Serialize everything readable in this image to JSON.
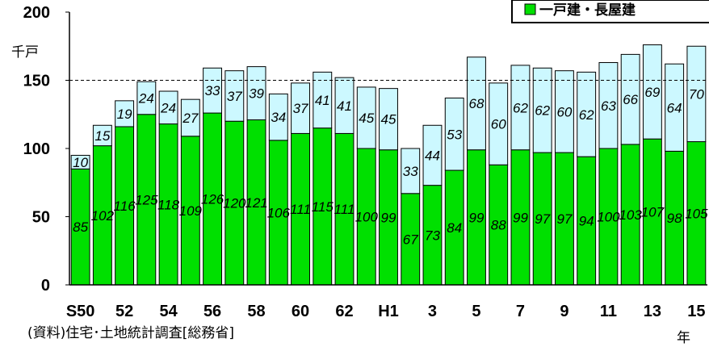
{
  "chart_data": {
    "type": "bar",
    "stacked": true,
    "categories": [
      "S50",
      "51",
      "52",
      "53",
      "54",
      "55",
      "56",
      "57",
      "58",
      "59",
      "60",
      "61",
      "62",
      "63",
      "H1",
      "2",
      "3",
      "4",
      "5",
      "6",
      "7",
      "8",
      "9",
      "10",
      "11",
      "12",
      "13",
      "14",
      "15"
    ],
    "x_tick_labels": [
      "S50",
      "52",
      "54",
      "56",
      "58",
      "60",
      "62",
      "H1",
      "3",
      "5",
      "7",
      "9",
      "11",
      "13",
      "15"
    ],
    "series": [
      {
        "name": "一戸建・長屋建",
        "color": "#00e000",
        "values": [
          85,
          102,
          116,
          125,
          118,
          109,
          126,
          120,
          121,
          106,
          111,
          115,
          111,
          100,
          99,
          67,
          73,
          84,
          99,
          88,
          99,
          97,
          97,
          94,
          100,
          103,
          107,
          98,
          105
        ]
      },
      {
        "name": "",
        "color": "#ccf8ff",
        "values": [
          10,
          15,
          19,
          24,
          24,
          27,
          33,
          37,
          39,
          34,
          37,
          41,
          41,
          45,
          45,
          33,
          44,
          53,
          68,
          60,
          62,
          62,
          60,
          62,
          63,
          66,
          69,
          64,
          70
        ]
      }
    ],
    "ylim": [
      0,
      200
    ],
    "y_ticks": [
      0,
      50,
      100,
      150,
      200
    ],
    "y_unit": "千戸",
    "x_unit": "年",
    "reference_line": 150,
    "legend_position": "top-right",
    "source_note": "(資料)住宅･土地統計調査[総務省]"
  }
}
